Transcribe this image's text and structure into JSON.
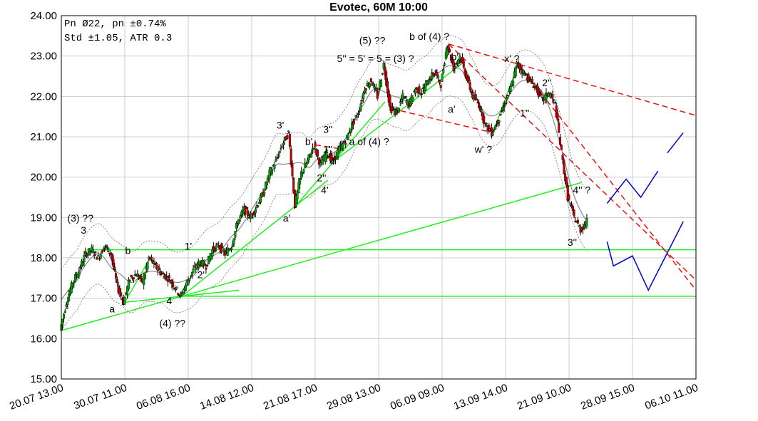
{
  "chart_data": {
    "type": "candlestick",
    "title": "Evotec, 60M 10:00",
    "info_lines": [
      "Pn  Ø22, pn ±0.74%",
      "Std ±1.05, ATR 0.3"
    ],
    "y_ticks": [
      "15.00",
      "16.00",
      "17.00",
      "18.00",
      "19.00",
      "20.00",
      "21.00",
      "22.00",
      "23.00",
      "24.00"
    ],
    "x_ticks": [
      "20.07 13.00",
      "30.07 11.00",
      "06.08 16.00",
      "14.08 12.00",
      "21.08 17.00",
      "29.08 13.00",
      "06.09 09.00",
      "13.09 14.00",
      "21.09 10.00",
      "28.09 15.00",
      "06.10 11.00"
    ],
    "ylim": [
      15,
      24
    ],
    "xlim": [
      0,
      100
    ],
    "grid": true,
    "price_path": [
      [
        0,
        16.2
      ],
      [
        1,
        16.9
      ],
      [
        2,
        17.4
      ],
      [
        3,
        17.7
      ],
      [
        4,
        18.1
      ],
      [
        5,
        18.2
      ],
      [
        6,
        18.0
      ],
      [
        7,
        18.3
      ],
      [
        8,
        18.1
      ],
      [
        9,
        17.3
      ],
      [
        10,
        16.9
      ],
      [
        11,
        17.5
      ],
      [
        12,
        17.6
      ],
      [
        13,
        17.4
      ],
      [
        14,
        18.0
      ],
      [
        15,
        17.8
      ],
      [
        16,
        17.6
      ],
      [
        17,
        17.5
      ],
      [
        18,
        17.3
      ],
      [
        19,
        17.05
      ],
      [
        20,
        17.4
      ],
      [
        21,
        17.7
      ],
      [
        22,
        17.9
      ],
      [
        23,
        17.8
      ],
      [
        24,
        18.2
      ],
      [
        25,
        18.3
      ],
      [
        26,
        18.1
      ],
      [
        27,
        18.3
      ],
      [
        28,
        18.9
      ],
      [
        29,
        19.2
      ],
      [
        30,
        19.0
      ],
      [
        31,
        19.3
      ],
      [
        32,
        19.6
      ],
      [
        33,
        20.1
      ],
      [
        34,
        20.4
      ],
      [
        35,
        20.8
      ],
      [
        36,
        21.1
      ],
      [
        37,
        19.3
      ],
      [
        38,
        20.1
      ],
      [
        39,
        20.4
      ],
      [
        40,
        20.8
      ],
      [
        41,
        20.3
      ],
      [
        42,
        20.6
      ],
      [
        43,
        20.4
      ],
      [
        44,
        20.7
      ],
      [
        45,
        20.9
      ],
      [
        46,
        21.3
      ],
      [
        47,
        21.6
      ],
      [
        48,
        22.2
      ],
      [
        49,
        22.4
      ],
      [
        50,
        22.0
      ],
      [
        51,
        22.8
      ],
      [
        52,
        21.7
      ],
      [
        53,
        21.6
      ],
      [
        54,
        22.0
      ],
      [
        55,
        21.8
      ],
      [
        56,
        22.2
      ],
      [
        57,
        22.1
      ],
      [
        58,
        22.4
      ],
      [
        59,
        22.6
      ],
      [
        60,
        22.3
      ],
      [
        61,
        23.3
      ],
      [
        62,
        22.7
      ],
      [
        63,
        23.0
      ],
      [
        64,
        22.5
      ],
      [
        65,
        22.0
      ],
      [
        66,
        21.8
      ],
      [
        67,
        21.3
      ],
      [
        68,
        21.1
      ],
      [
        69,
        21.4
      ],
      [
        70,
        21.8
      ],
      [
        71,
        22.2
      ],
      [
        72,
        22.8
      ],
      [
        73,
        22.6
      ],
      [
        74,
        22.4
      ],
      [
        75,
        22.2
      ],
      [
        76,
        21.9
      ],
      [
        77,
        22.1
      ],
      [
        78,
        21.8
      ],
      [
        79,
        20.6
      ],
      [
        80,
        19.5
      ],
      [
        81,
        19.0
      ],
      [
        82,
        18.7
      ],
      [
        83,
        18.9
      ]
    ],
    "forecast": [
      [
        [
          86,
          19.35
        ],
        [
          89,
          19.95
        ],
        [
          91.3,
          19.5
        ],
        [
          94,
          20.15
        ]
      ],
      [
        [
          95.5,
          20.6
        ],
        [
          98,
          21.1
        ]
      ],
      [
        [
          86,
          18.4
        ],
        [
          87,
          17.8
        ],
        [
          90,
          18.05
        ],
        [
          92.5,
          17.2
        ],
        [
          98,
          18.9
        ]
      ]
    ],
    "labels": [
      {
        "text": "(3) ??",
        "x": 3,
        "y": 18.9
      },
      {
        "text": "3",
        "x": 3.5,
        "y": 18.6
      },
      {
        "text": "a",
        "x": 8,
        "y": 16.65
      },
      {
        "text": "b",
        "x": 10.5,
        "y": 18.1
      },
      {
        "text": "4",
        "x": 17,
        "y": 16.85
      },
      {
        "text": "(4) ??",
        "x": 17.5,
        "y": 16.3
      },
      {
        "text": "1'",
        "x": 20,
        "y": 18.2
      },
      {
        "text": "2'",
        "x": 22,
        "y": 17.5
      },
      {
        "text": "3'",
        "x": 34.5,
        "y": 21.2
      },
      {
        "text": "a'",
        "x": 35.5,
        "y": 18.9
      },
      {
        "text": "b'",
        "x": 39,
        "y": 20.8
      },
      {
        "text": "3''",
        "x": 42,
        "y": 21.1
      },
      {
        "text": "1''",
        "x": 42,
        "y": 20.6
      },
      {
        "text": "4''",
        "x": 43,
        "y": 20.3
      },
      {
        "text": "2''",
        "x": 41,
        "y": 19.9
      },
      {
        "text": "4'",
        "x": 41.5,
        "y": 19.6
      },
      {
        "text": "a of (4) ?",
        "x": 48.5,
        "y": 20.8
      },
      {
        "text": "(5) ??",
        "x": 49,
        "y": 23.3
      },
      {
        "text": "5'' = 5' = 5 = (3) ?",
        "x": 49.5,
        "y": 22.85
      },
      {
        "text": "b of (4) ?",
        "x": 58,
        "y": 23.4
      },
      {
        "text": "b'",
        "x": 62,
        "y": 22.9
      },
      {
        "text": "a'",
        "x": 61.5,
        "y": 21.6
      },
      {
        "text": "w' ?",
        "x": 66.5,
        "y": 20.6
      },
      {
        "text": "x' ?",
        "x": 71,
        "y": 22.85
      },
      {
        "text": "2''",
        "x": 76.5,
        "y": 22.25
      },
      {
        "text": "1''",
        "x": 73,
        "y": 21.5
      },
      {
        "text": "4'' ?",
        "x": 82,
        "y": 19.6
      },
      {
        "text": "3''",
        "x": 80.5,
        "y": 18.3
      }
    ],
    "colors": {
      "candle_up": "#00aa00",
      "candle_down": "#cc0000",
      "trend": "#22ee22",
      "resistance": "#ee1111",
      "forecast": "#0000cc",
      "band": "#888888",
      "grid": "#cccccc"
    }
  }
}
